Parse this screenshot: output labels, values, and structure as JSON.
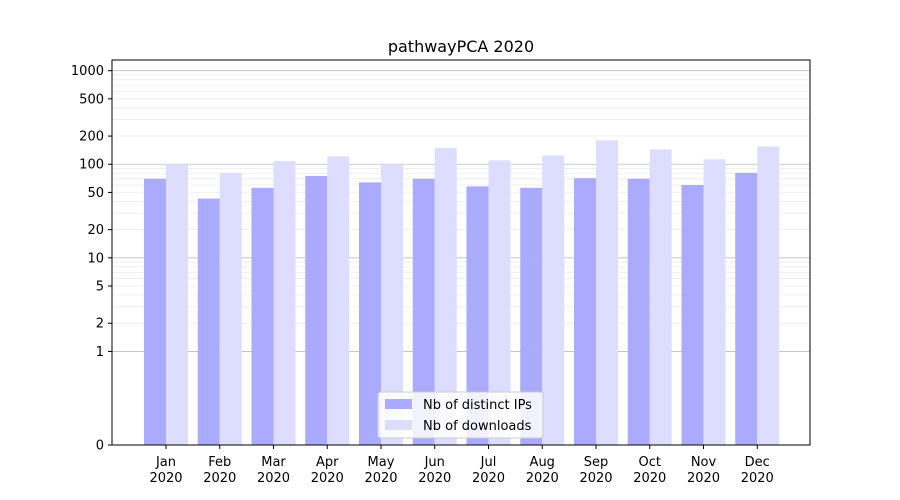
{
  "chart_data": {
    "type": "bar",
    "title": "pathwayPCA 2020",
    "xlabel": "",
    "ylabel": "",
    "y_scale": "symlog",
    "ylim": [
      0,
      1300
    ],
    "y_ticks": [
      {
        "value": 0,
        "label": "0"
      },
      {
        "value": 1,
        "label": "1"
      },
      {
        "value": 2,
        "label": "2"
      },
      {
        "value": 5,
        "label": "5"
      },
      {
        "value": 10,
        "label": "10"
      },
      {
        "value": 20,
        "label": "20"
      },
      {
        "value": 50,
        "label": "50"
      },
      {
        "value": 100,
        "label": "100"
      },
      {
        "value": 200,
        "label": "200"
      },
      {
        "value": 500,
        "label": "500"
      },
      {
        "value": 1000,
        "label": "1000"
      }
    ],
    "categories": [
      {
        "month": "Jan",
        "year": "2020"
      },
      {
        "month": "Feb",
        "year": "2020"
      },
      {
        "month": "Mar",
        "year": "2020"
      },
      {
        "month": "Apr",
        "year": "2020"
      },
      {
        "month": "May",
        "year": "2020"
      },
      {
        "month": "Jun",
        "year": "2020"
      },
      {
        "month": "Jul",
        "year": "2020"
      },
      {
        "month": "Aug",
        "year": "2020"
      },
      {
        "month": "Sep",
        "year": "2020"
      },
      {
        "month": "Oct",
        "year": "2020"
      },
      {
        "month": "Nov",
        "year": "2020"
      },
      {
        "month": "Dec",
        "year": "2020"
      }
    ],
    "series": [
      {
        "name": "Nb of distinct IPs",
        "color": "#aaaaff",
        "values": [
          70,
          43,
          56,
          75,
          64,
          70,
          58,
          56,
          71,
          70,
          60,
          81
        ]
      },
      {
        "name": "Nb of downloads",
        "color": "#ddddff",
        "values": [
          100,
          81,
          108,
          121,
          100,
          149,
          110,
          124,
          180,
          144,
          113,
          155
        ]
      }
    ],
    "grid": true,
    "legend_position": "bottom-center"
  }
}
